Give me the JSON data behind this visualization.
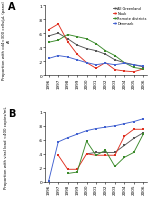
{
  "years": [
    1996,
    1997,
    1998,
    1999,
    2000,
    2001,
    2002,
    2003,
    2004,
    2005,
    2006
  ],
  "panel_A": {
    "title": "A",
    "ylabel": "Proportion with cd4<300 cells/μL (panel A)",
    "ylim": [
      0,
      1
    ],
    "yticks": [
      0,
      0.2,
      0.4,
      0.6,
      0.8,
      1.0
    ],
    "yticklabels": [
      "0",
      ".2",
      ".4",
      ".6",
      ".8",
      "1"
    ],
    "series": {
      "All Greenland": {
        "color": "#555555",
        "marker": "s",
        "values": [
          0.56,
          0.6,
          0.52,
          0.43,
          0.38,
          0.35,
          0.3,
          0.22,
          0.18,
          0.15,
          0.12
        ]
      },
      "Nuuk": {
        "color": "#e03020",
        "marker": "s",
        "values": [
          0.65,
          0.73,
          0.48,
          0.3,
          0.18,
          0.1,
          0.18,
          0.08,
          0.06,
          0.05,
          0.09
        ]
      },
      "Remote districts": {
        "color": "#3a8a2a",
        "marker": "s",
        "values": [
          0.47,
          0.5,
          0.58,
          0.55,
          0.52,
          0.45,
          0.35,
          0.28,
          0.18,
          0.11,
          0.09
        ]
      },
      "Denmark": {
        "color": "#4060d0",
        "marker": "s",
        "values": [
          0.24,
          0.28,
          0.26,
          0.22,
          0.18,
          0.15,
          0.17,
          0.15,
          0.17,
          0.15,
          0.13
        ]
      }
    }
  },
  "panel_B": {
    "title": "B",
    "ylabel": "Proportion with viral load <400 copies/mL",
    "ylim": [
      0,
      1
    ],
    "yticks": [
      0,
      0.2,
      0.4,
      0.6,
      0.8,
      1.0
    ],
    "yticklabels": [
      "0",
      ".2",
      ".4",
      ".6",
      ".8",
      "1"
    ],
    "series": {
      "All Greenland": {
        "color": "#555555",
        "marker": "s",
        "values": [
          null,
          null,
          null,
          null,
          0.4,
          0.42,
          0.42,
          0.42,
          0.52,
          0.62,
          0.7
        ]
      },
      "Nuuk": {
        "color": "#e03020",
        "marker": "s",
        "values": [
          null,
          0.38,
          0.18,
          0.18,
          0.4,
          0.38,
          0.38,
          0.38,
          0.65,
          0.75,
          0.75
        ]
      },
      "Remote districts": {
        "color": "#3a8a2a",
        "marker": "s",
        "values": [
          null,
          null,
          0.12,
          0.14,
          0.58,
          0.38,
          0.45,
          0.22,
          0.35,
          0.42,
          0.68
        ]
      },
      "Denmark": {
        "color": "#4060d0",
        "marker": "s",
        "values": [
          0.02,
          0.57,
          0.63,
          0.68,
          0.73,
          0.76,
          0.78,
          0.8,
          0.83,
          0.86,
          0.9
        ]
      }
    }
  },
  "legend_order": [
    "All Greenland",
    "Nuuk",
    "Remote districts",
    "Denmark"
  ],
  "xtick_labels": [
    "1996",
    "1997",
    "1998",
    "1999",
    "2000",
    "2001",
    "2002",
    "2003",
    "2004",
    "2005",
    "2006"
  ]
}
